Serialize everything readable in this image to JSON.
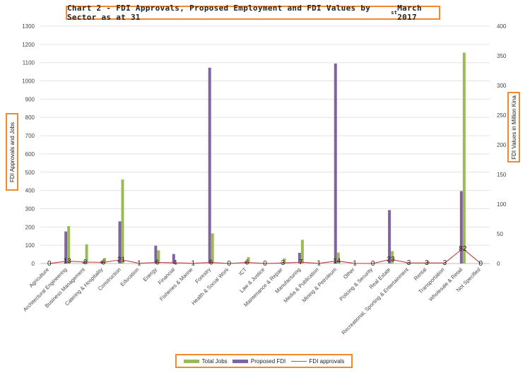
{
  "chart_data": {
    "type": "bar",
    "title": "Chart 2 - FDI Approvals, Proposed Employment and FDI Values by Sector as at 31",
    "title_sup": "st",
    "title_suffix": " March 2017",
    "ylabel_left": "FDI Approvals and Jobs",
    "ylabel_right": "FDI Values in Million Kina",
    "ylim_left": [
      0,
      1300
    ],
    "ylim_right": [
      0,
      400
    ],
    "left_ticks": [
      0,
      100,
      200,
      300,
      400,
      500,
      600,
      700,
      800,
      900,
      1000,
      1100,
      1200,
      1300
    ],
    "right_ticks": [
      0,
      50,
      100,
      150,
      200,
      250,
      300,
      350,
      400
    ],
    "grid": true,
    "legend_position": "bottom",
    "categories": [
      "Agriculture",
      "Architectural Engineering",
      "Business Management",
      "Catering & Hospitality",
      "Construction",
      "Education",
      "Energy",
      "Financial",
      "Fisheries & Marine",
      "Forestry",
      "Health & Social Work",
      "ICT",
      "Law & Justice",
      "Maintenance & Repair",
      "Manufacturing",
      "Media & Publication",
      "Mining & Petroleum",
      "Other",
      "Policing & Security",
      "Real Estate",
      "Recreational, Sporting & Entertainment",
      "Rental",
      "Transportation",
      "Wholesale & Retail",
      "Not Specified"
    ],
    "series": [
      {
        "name": "Total Jobs",
        "axis": "left",
        "color": "#9bbb59",
        "values": [
          0,
          205,
          105,
          30,
          460,
          0,
          72,
          0,
          0,
          165,
          0,
          35,
          0,
          28,
          130,
          0,
          60,
          0,
          0,
          68,
          5,
          12,
          0,
          1155,
          0
        ]
      },
      {
        "name": "Proposed FDI",
        "axis": "right",
        "color": "#8064a2",
        "values": [
          0,
          54,
          2,
          4,
          71,
          0,
          30,
          16,
          0,
          330,
          0,
          3,
          0,
          2,
          18,
          0,
          337,
          0,
          0,
          90,
          2,
          1,
          0,
          122,
          0
        ]
      },
      {
        "name": "FDI approvals",
        "axis": "left",
        "color": "#c0504d",
        "values": [
          0,
          13,
          8,
          6,
          21,
          1,
          6,
          4,
          1,
          6,
          0,
          6,
          0,
          3,
          7,
          1,
          14,
          1,
          0,
          23,
          3,
          3,
          3,
          82,
          0
        ]
      }
    ]
  }
}
